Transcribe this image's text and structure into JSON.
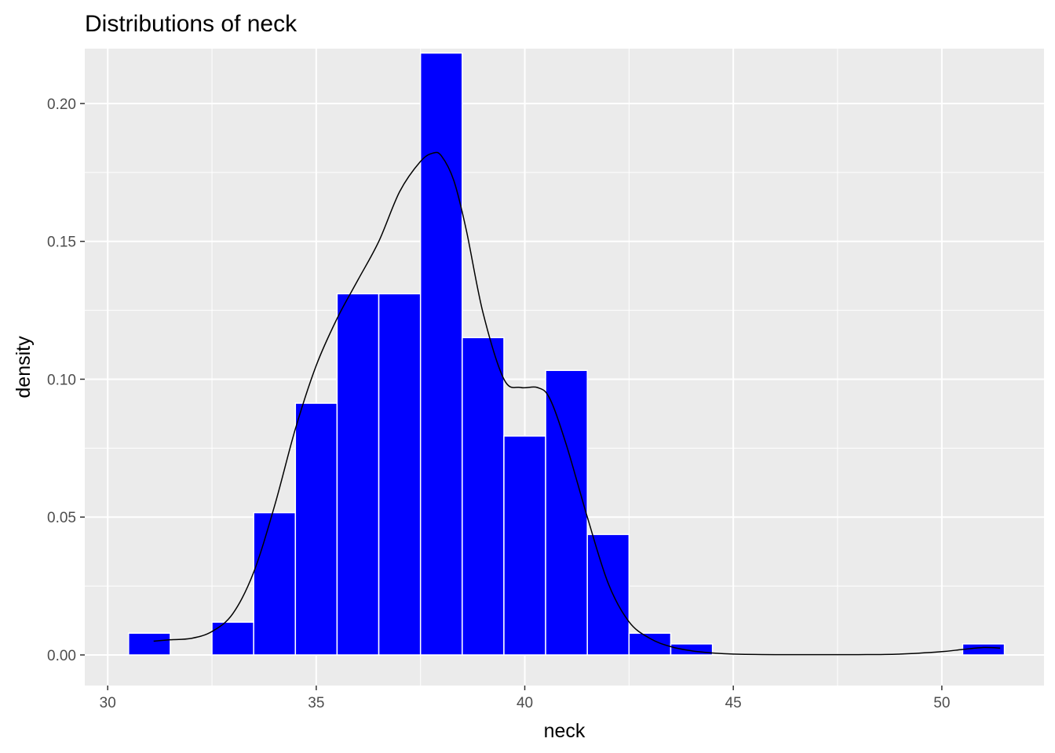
{
  "chart_data": {
    "type": "bar",
    "title": "Distributions of neck",
    "xlabel": "neck",
    "ylabel": "density",
    "xlim": [
      29.45,
      52.45
    ],
    "ylim": [
      -0.0111,
      0.2199
    ],
    "x_ticks": [
      30,
      35,
      40,
      45,
      50
    ],
    "x_tick_labels": [
      "30",
      "35",
      "40",
      "45",
      "50"
    ],
    "y_ticks": [
      0.0,
      0.05,
      0.1,
      0.15,
      0.2
    ],
    "y_tick_labels": [
      "0.00",
      "0.05",
      "0.10",
      "0.15",
      "0.20"
    ],
    "grid": true,
    "legend": "none",
    "bin_width": 1,
    "histogram": {
      "bin_centers": [
        31,
        32,
        33,
        34,
        35,
        36,
        37,
        38,
        39,
        40,
        41,
        42,
        43,
        44,
        45,
        46,
        47,
        48,
        49,
        50,
        51
      ],
      "density": [
        0.0079,
        0,
        0.0119,
        0.0516,
        0.0913,
        0.131,
        0.131,
        0.2183,
        0.1151,
        0.0794,
        0.1032,
        0.0437,
        0.0079,
        0.004,
        0,
        0,
        0,
        0,
        0,
        0,
        0.004
      ]
    },
    "density_curve": {
      "x": [
        31.1,
        31.5,
        32.0,
        32.5,
        33.0,
        33.5,
        34.0,
        34.5,
        35.0,
        35.5,
        36.0,
        36.5,
        37.0,
        37.5,
        37.8,
        38.0,
        38.3,
        38.6,
        39.0,
        39.5,
        39.9,
        40.3,
        40.6,
        41.0,
        41.5,
        42.0,
        42.5,
        43.0,
        43.5,
        44.0,
        44.5,
        45.0,
        46.0,
        47.0,
        48.0,
        49.0,
        50.0,
        50.5,
        51.0,
        51.4
      ],
      "y": [
        0.005,
        0.0055,
        0.006,
        0.0085,
        0.015,
        0.03,
        0.054,
        0.082,
        0.105,
        0.122,
        0.136,
        0.15,
        0.168,
        0.179,
        0.182,
        0.181,
        0.172,
        0.154,
        0.124,
        0.1,
        0.097,
        0.097,
        0.093,
        0.076,
        0.05,
        0.026,
        0.012,
        0.006,
        0.003,
        0.0015,
        0.0007,
        0.0003,
        0.0001,
        0.0001,
        0.0001,
        0.0003,
        0.0012,
        0.002,
        0.0027,
        0.0025
      ]
    },
    "colors": {
      "bar_fill": "#0000ff",
      "bar_outline": "#ffffff",
      "density_line": "#000000",
      "panel_background": "#ebebeb",
      "grid": "#ffffff"
    }
  }
}
